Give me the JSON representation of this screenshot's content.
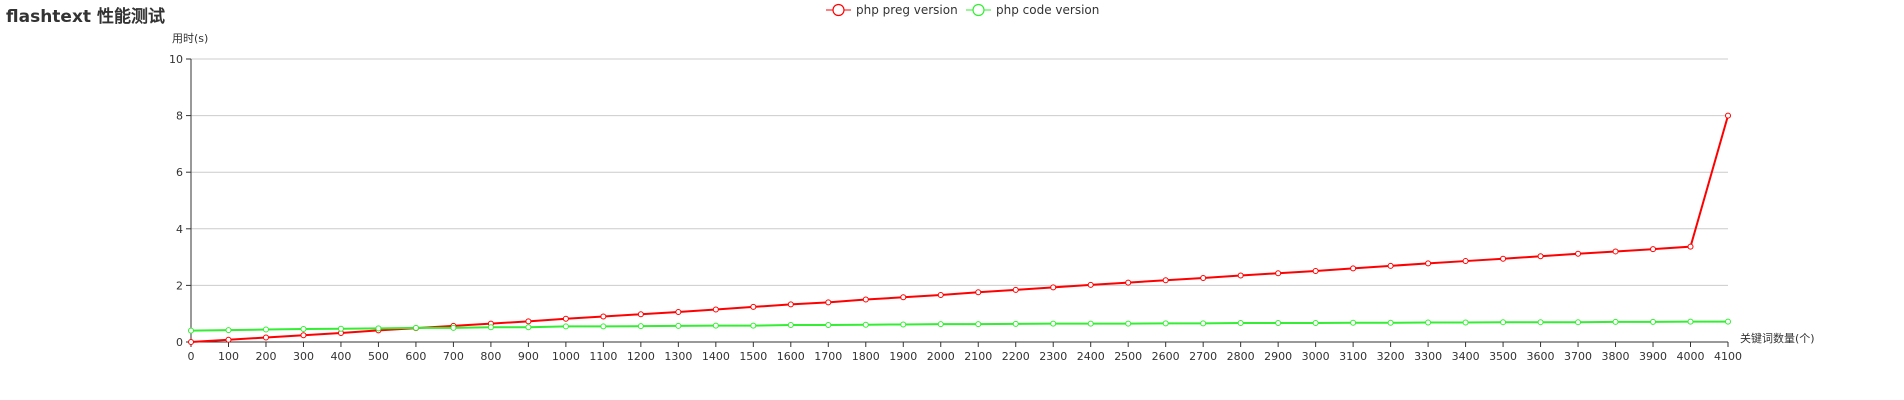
{
  "chart_data": {
    "type": "line",
    "title": "flashtext 性能测试",
    "ylabel": "用时(s)",
    "xlabel": "关键词数量(个)",
    "ylim": [
      0,
      10
    ],
    "y_ticks": [
      0,
      2,
      4,
      6,
      8,
      10
    ],
    "grid": true,
    "legend_position": "top-center",
    "x": [
      0,
      100,
      200,
      300,
      400,
      500,
      600,
      700,
      800,
      900,
      1000,
      1100,
      1200,
      1300,
      1400,
      1500,
      1600,
      1700,
      1800,
      1900,
      2000,
      2100,
      2200,
      2300,
      2400,
      2500,
      2600,
      2700,
      2800,
      2900,
      3000,
      3100,
      3200,
      3300,
      3400,
      3500,
      3600,
      3700,
      3800,
      3900,
      4000,
      4100
    ],
    "series": [
      {
        "name": "php preg version",
        "color": "#ff0000",
        "values": [
          0.0,
          0.08,
          0.16,
          0.24,
          0.32,
          0.41,
          0.49,
          0.57,
          0.65,
          0.73,
          0.82,
          0.9,
          0.98,
          1.06,
          1.15,
          1.24,
          1.33,
          1.4,
          1.5,
          1.58,
          1.66,
          1.76,
          1.84,
          1.93,
          2.02,
          2.1,
          2.18,
          2.26,
          2.35,
          2.43,
          2.51,
          2.6,
          2.69,
          2.78,
          2.86,
          2.94,
          3.03,
          3.12,
          3.2,
          3.28,
          3.37,
          8.0
        ]
      },
      {
        "name": "php code version",
        "color": "#33ee33",
        "values": [
          0.4,
          0.42,
          0.44,
          0.46,
          0.47,
          0.48,
          0.5,
          0.5,
          0.52,
          0.52,
          0.55,
          0.55,
          0.56,
          0.57,
          0.58,
          0.58,
          0.6,
          0.6,
          0.61,
          0.62,
          0.63,
          0.63,
          0.64,
          0.65,
          0.65,
          0.65,
          0.66,
          0.66,
          0.67,
          0.67,
          0.67,
          0.68,
          0.68,
          0.69,
          0.69,
          0.7,
          0.7,
          0.7,
          0.71,
          0.71,
          0.72,
          0.72
        ]
      }
    ]
  }
}
